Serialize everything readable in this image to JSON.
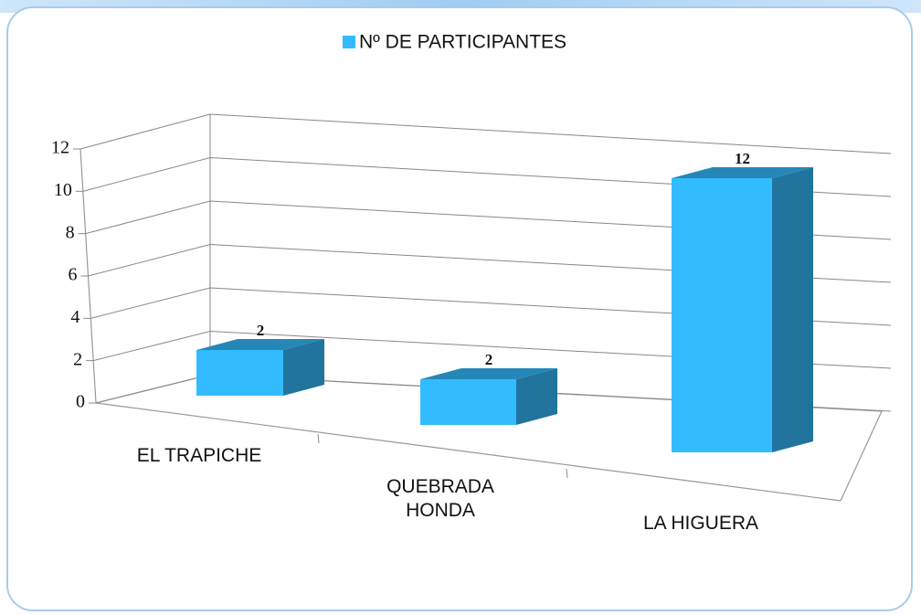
{
  "chart_data": {
    "type": "bar3d",
    "categories": [
      "EL TRAPICHE",
      "QUEBRADA HONDA",
      "LA HIGUERA"
    ],
    "series": [
      {
        "name": "Nº DE PARTICIPANTES",
        "color": "#33bbff",
        "values": [
          2,
          2,
          12
        ]
      }
    ],
    "ylim": [
      0,
      12
    ],
    "yticks": [
      0,
      2,
      4,
      6,
      8,
      10,
      12
    ],
    "grid": true,
    "legend": "top"
  }
}
